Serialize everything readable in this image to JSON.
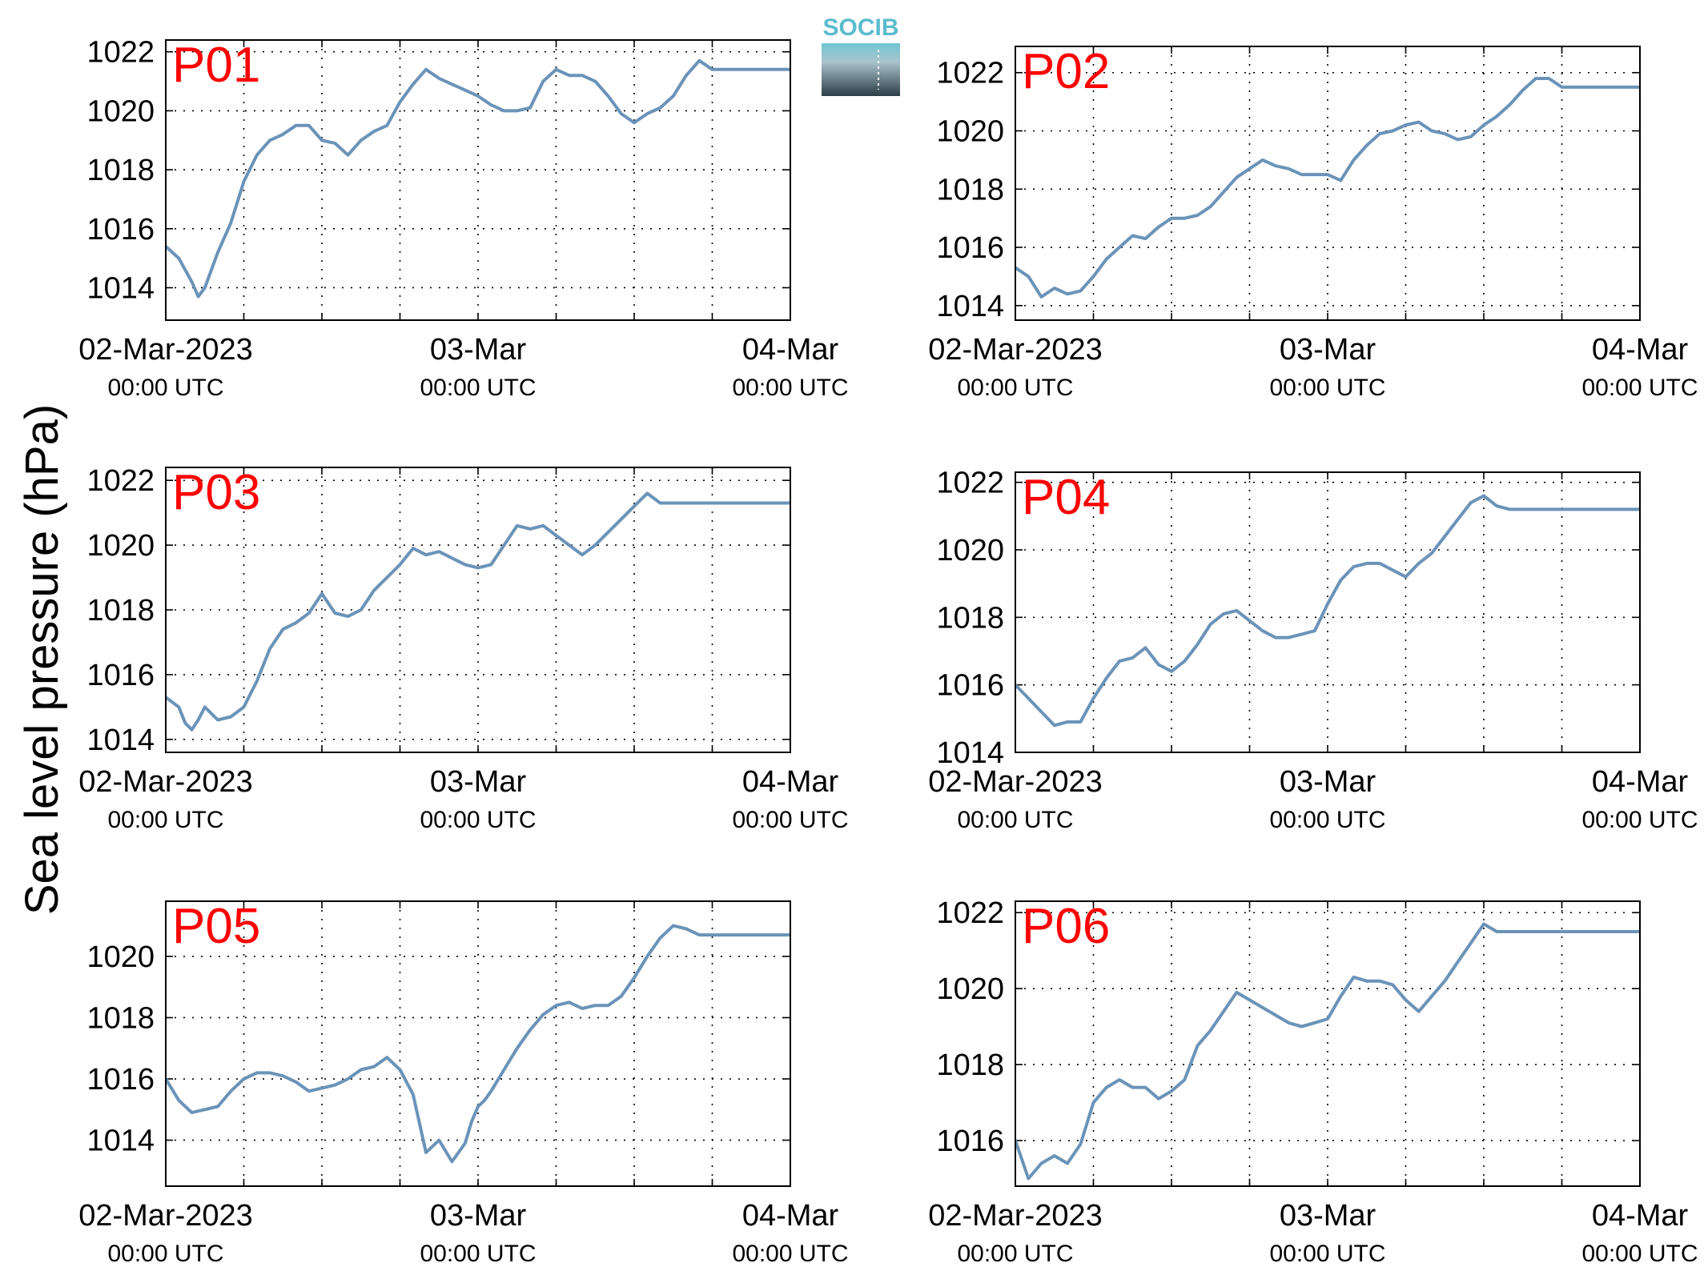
{
  "ylabel": "Sea level pressure (hPa)",
  "logo": {
    "text": "SOCIB"
  },
  "colors": {
    "line": "#6b93b8",
    "panel_label": "#ff0000",
    "logo_top": "#5bbccd",
    "logo_bottom": "#2c3d46"
  },
  "chart_data": [
    {
      "type": "line",
      "panel": "P01",
      "x_ticks": [
        {
          "x": 0,
          "label": "02-Mar-2023",
          "sublabel": "00:00 UTC"
        },
        {
          "x": 24,
          "label": "03-Mar",
          "sublabel": "00:00 UTC"
        },
        {
          "x": 48,
          "label": "04-Mar",
          "sublabel": "00:00 UTC"
        }
      ],
      "xlim": [
        0,
        48
      ],
      "x_unit": "hours since 02-Mar-2023 00:00 UTC",
      "ylim": [
        1012.9,
        1022.4
      ],
      "yticks": [
        1014,
        1016,
        1018,
        1020,
        1022
      ],
      "grid": true,
      "series": [
        {
          "x": [
            0,
            1,
            2,
            2.5,
            3,
            4,
            5,
            6,
            7,
            8,
            9,
            10,
            11,
            12,
            13,
            14,
            15,
            16,
            17,
            18,
            19,
            20,
            21,
            22,
            23,
            24,
            25,
            26,
            27,
            28,
            29,
            30,
            31,
            32,
            33,
            34,
            35,
            36,
            37,
            38,
            39,
            40,
            41,
            42,
            43,
            44,
            45,
            46,
            47,
            48
          ],
          "y": [
            1015.4,
            1015.0,
            1014.2,
            1013.7,
            1014.0,
            1015.2,
            1016.2,
            1017.6,
            1018.5,
            1019.0,
            1019.2,
            1019.5,
            1019.5,
            1019.0,
            1018.9,
            1018.5,
            1019.0,
            1019.3,
            1019.5,
            1020.3,
            1020.9,
            1021.4,
            1021.1,
            1020.9,
            1020.7,
            1020.5,
            1020.2,
            1020.0,
            1020.0,
            1020.1,
            1021.0,
            1021.4,
            1021.2,
            1021.2,
            1021.0,
            1020.5,
            1019.9,
            1019.6,
            1019.9,
            1020.1,
            1020.5,
            1021.2,
            1021.7,
            1021.4,
            1021.4,
            1021.4,
            1021.4,
            1021.4,
            1021.4,
            1021.4
          ]
        }
      ]
    },
    {
      "type": "line",
      "panel": "P02",
      "x_ticks": [
        {
          "x": 0,
          "label": "02-Mar-2023",
          "sublabel": "00:00 UTC"
        },
        {
          "x": 24,
          "label": "03-Mar",
          "sublabel": "00:00 UTC"
        },
        {
          "x": 48,
          "label": "04-Mar",
          "sublabel": "00:00 UTC"
        }
      ],
      "xlim": [
        0,
        48
      ],
      "x_unit": "hours since 02-Mar-2023 00:00 UTC",
      "ylim": [
        1013.5,
        1022.9
      ],
      "yticks": [
        1014,
        1016,
        1018,
        1020,
        1022
      ],
      "grid": true,
      "series": [
        {
          "x": [
            0,
            1,
            2,
            3,
            4,
            5,
            6,
            7,
            8,
            9,
            10,
            11,
            12,
            13,
            14,
            15,
            16,
            17,
            18,
            19,
            20,
            21,
            22,
            23,
            24,
            25,
            26,
            27,
            28,
            29,
            30,
            31,
            32,
            33,
            34,
            35,
            36,
            37,
            38,
            39,
            40,
            41,
            42,
            43,
            44,
            45,
            46,
            47,
            48
          ],
          "y": [
            1015.3,
            1015.0,
            1014.3,
            1014.6,
            1014.4,
            1014.5,
            1015.0,
            1015.6,
            1016.0,
            1016.4,
            1016.3,
            1016.7,
            1017.0,
            1017.0,
            1017.1,
            1017.4,
            1017.9,
            1018.4,
            1018.7,
            1019.0,
            1018.8,
            1018.7,
            1018.5,
            1018.5,
            1018.5,
            1018.3,
            1019.0,
            1019.5,
            1019.9,
            1020.0,
            1020.2,
            1020.3,
            1020.0,
            1019.9,
            1019.7,
            1019.8,
            1020.2,
            1020.5,
            1020.9,
            1021.4,
            1021.8,
            1021.8,
            1021.5,
            1021.5,
            1021.5,
            1021.5,
            1021.5,
            1021.5,
            1021.5
          ]
        }
      ]
    },
    {
      "type": "line",
      "panel": "P03",
      "x_ticks": [
        {
          "x": 0,
          "label": "02-Mar-2023",
          "sublabel": "00:00 UTC"
        },
        {
          "x": 24,
          "label": "03-Mar",
          "sublabel": "00:00 UTC"
        },
        {
          "x": 48,
          "label": "04-Mar",
          "sublabel": "00:00 UTC"
        }
      ],
      "xlim": [
        0,
        48
      ],
      "x_unit": "hours since 02-Mar-2023 00:00 UTC",
      "ylim": [
        1013.6,
        1022.4
      ],
      "yticks": [
        1014,
        1016,
        1018,
        1020,
        1022
      ],
      "grid": true,
      "series": [
        {
          "x": [
            0,
            1,
            1.5,
            2,
            2.5,
            3,
            4,
            5,
            6,
            7,
            8,
            9,
            10,
            11,
            12,
            13,
            14,
            15,
            16,
            17,
            18,
            19,
            20,
            21,
            22,
            23,
            24,
            25,
            26,
            27,
            28,
            29,
            30,
            31,
            32,
            33,
            34,
            35,
            36,
            37,
            38,
            39,
            40,
            41,
            42,
            43,
            44,
            45,
            46,
            47,
            48
          ],
          "y": [
            1015.3,
            1015.0,
            1014.5,
            1014.3,
            1014.6,
            1015.0,
            1014.6,
            1014.7,
            1015.0,
            1015.8,
            1016.8,
            1017.4,
            1017.6,
            1017.9,
            1018.5,
            1017.9,
            1017.8,
            1018.0,
            1018.6,
            1019.0,
            1019.4,
            1019.9,
            1019.7,
            1019.8,
            1019.6,
            1019.4,
            1019.3,
            1019.4,
            1020.0,
            1020.6,
            1020.5,
            1020.6,
            1020.3,
            1020.0,
            1019.7,
            1020.0,
            1020.4,
            1020.8,
            1021.2,
            1021.6,
            1021.3,
            1021.3,
            1021.3,
            1021.3,
            1021.3,
            1021.3,
            1021.3,
            1021.3,
            1021.3,
            1021.3,
            1021.3
          ]
        }
      ]
    },
    {
      "type": "line",
      "panel": "P04",
      "x_ticks": [
        {
          "x": 0,
          "label": "02-Mar-2023",
          "sublabel": "00:00 UTC"
        },
        {
          "x": 24,
          "label": "03-Mar",
          "sublabel": "00:00 UTC"
        },
        {
          "x": 48,
          "label": "04-Mar",
          "sublabel": "00:00 UTC"
        }
      ],
      "xlim": [
        0,
        48
      ],
      "x_unit": "hours since 02-Mar-2023 00:00 UTC",
      "ylim": [
        1014,
        1022.3
      ],
      "yticks": [
        1014,
        1016,
        1018,
        1020,
        1022
      ],
      "grid": true,
      "series": [
        {
          "x": [
            0,
            1,
            2,
            3,
            4,
            5,
            6,
            7,
            8,
            9,
            10,
            11,
            12,
            13,
            14,
            15,
            16,
            17,
            18,
            19,
            20,
            21,
            22,
            23,
            24,
            25,
            26,
            27,
            28,
            29,
            30,
            31,
            32,
            33,
            34,
            35,
            36,
            37,
            38,
            39,
            40,
            41,
            42,
            43,
            44,
            45,
            46,
            47,
            48
          ],
          "y": [
            1016.0,
            1015.6,
            1015.2,
            1014.8,
            1014.9,
            1014.9,
            1015.6,
            1016.2,
            1016.7,
            1016.8,
            1017.1,
            1016.6,
            1016.4,
            1016.7,
            1017.2,
            1017.8,
            1018.1,
            1018.2,
            1017.9,
            1017.6,
            1017.4,
            1017.4,
            1017.5,
            1017.6,
            1018.4,
            1019.1,
            1019.5,
            1019.6,
            1019.6,
            1019.4,
            1019.2,
            1019.6,
            1019.9,
            1020.4,
            1020.9,
            1021.4,
            1021.6,
            1021.3,
            1021.2,
            1021.2,
            1021.2,
            1021.2,
            1021.2,
            1021.2,
            1021.2,
            1021.2,
            1021.2,
            1021.2,
            1021.2
          ]
        }
      ]
    },
    {
      "type": "line",
      "panel": "P05",
      "x_ticks": [
        {
          "x": 0,
          "label": "02-Mar-2023",
          "sublabel": "00:00 UTC"
        },
        {
          "x": 24,
          "label": "03-Mar",
          "sublabel": "00:00 UTC"
        },
        {
          "x": 48,
          "label": "04-Mar",
          "sublabel": "00:00 UTC"
        }
      ],
      "xlim": [
        0,
        48
      ],
      "x_unit": "hours since 02-Mar-2023 00:00 UTC",
      "ylim": [
        1012.5,
        1021.8
      ],
      "yticks": [
        1014,
        1016,
        1018,
        1020
      ],
      "grid": true,
      "series": [
        {
          "x": [
            0,
            1,
            2,
            3,
            4,
            5,
            6,
            7,
            8,
            9,
            10,
            11,
            12,
            13,
            14,
            15,
            16,
            17,
            18,
            19,
            20,
            21,
            22,
            23,
            23.5,
            24,
            24.5,
            25,
            26,
            27,
            28,
            29,
            30,
            31,
            32,
            33,
            34,
            35,
            36,
            37,
            38,
            39,
            40,
            41,
            42,
            43,
            44,
            45,
            46,
            47,
            48
          ],
          "y": [
            1016.0,
            1015.3,
            1014.9,
            1015.0,
            1015.1,
            1015.6,
            1016.0,
            1016.2,
            1016.2,
            1016.1,
            1015.9,
            1015.6,
            1015.7,
            1015.8,
            1016.0,
            1016.3,
            1016.4,
            1016.7,
            1016.3,
            1015.5,
            1013.6,
            1014.0,
            1013.3,
            1013.9,
            1014.6,
            1015.1,
            1015.3,
            1015.6,
            1016.3,
            1017.0,
            1017.6,
            1018.1,
            1018.4,
            1018.5,
            1018.3,
            1018.4,
            1018.4,
            1018.7,
            1019.3,
            1020.0,
            1020.6,
            1021.0,
            1020.9,
            1020.7,
            1020.7,
            1020.7,
            1020.7,
            1020.7,
            1020.7,
            1020.7,
            1020.7
          ]
        }
      ]
    },
    {
      "type": "line",
      "panel": "P06",
      "x_ticks": [
        {
          "x": 0,
          "label": "02-Mar-2023",
          "sublabel": "00:00 UTC"
        },
        {
          "x": 24,
          "label": "03-Mar",
          "sublabel": "00:00 UTC"
        },
        {
          "x": 48,
          "label": "04-Mar",
          "sublabel": "00:00 UTC"
        }
      ],
      "xlim": [
        0,
        48
      ],
      "x_unit": "hours since 02-Mar-2023 00:00 UTC",
      "ylim": [
        1014.8,
        1022.3
      ],
      "yticks": [
        1016,
        1018,
        1020,
        1022
      ],
      "grid": true,
      "series": [
        {
          "x": [
            0,
            1,
            2,
            3,
            4,
            5,
            6,
            7,
            8,
            9,
            10,
            11,
            12,
            13,
            14,
            15,
            16,
            17,
            18,
            19,
            20,
            21,
            22,
            23,
            24,
            25,
            26,
            27,
            28,
            29,
            30,
            31,
            32,
            33,
            34,
            35,
            36,
            37,
            38,
            39,
            40,
            41,
            42,
            43,
            44,
            45,
            46,
            47,
            48
          ],
          "y": [
            1016.0,
            1015.0,
            1015.4,
            1015.6,
            1015.4,
            1015.9,
            1017.0,
            1017.4,
            1017.6,
            1017.4,
            1017.4,
            1017.1,
            1017.3,
            1017.6,
            1018.5,
            1018.9,
            1019.4,
            1019.9,
            1019.7,
            1019.5,
            1019.3,
            1019.1,
            1019.0,
            1019.1,
            1019.2,
            1019.8,
            1020.3,
            1020.2,
            1020.2,
            1020.1,
            1019.7,
            1019.4,
            1019.8,
            1020.2,
            1020.7,
            1021.2,
            1021.7,
            1021.5,
            1021.5,
            1021.5,
            1021.5,
            1021.5,
            1021.5,
            1021.5,
            1021.5,
            1021.5,
            1021.5,
            1021.5,
            1021.5
          ]
        }
      ]
    }
  ]
}
